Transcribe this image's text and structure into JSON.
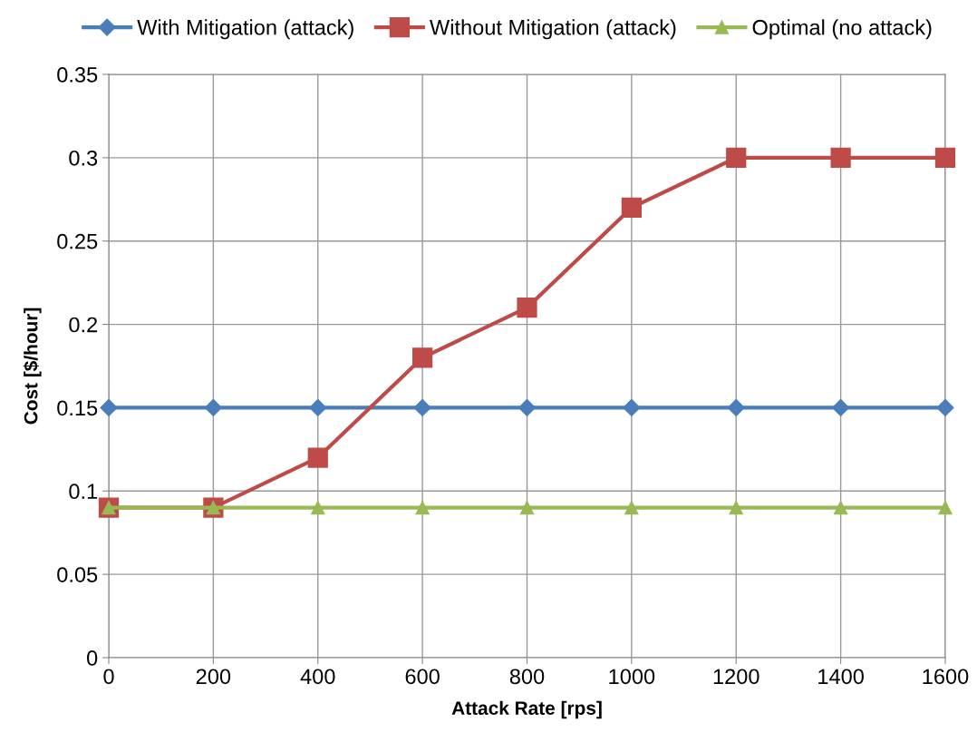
{
  "chart_data": {
    "type": "line",
    "xlabel": "Attack Rate [rps]",
    "ylabel": "Cost [$/hour]",
    "x": [
      0,
      200,
      400,
      600,
      800,
      1000,
      1200,
      1400,
      1600
    ],
    "series": [
      {
        "name": "With Mitigation (attack)",
        "color": "#4a7ebb",
        "marker": "diamond",
        "values": [
          0.15,
          0.15,
          0.15,
          0.15,
          0.15,
          0.15,
          0.15,
          0.15,
          0.15
        ]
      },
      {
        "name": "Without Mitigation (attack)",
        "color": "#be4b48",
        "marker": "square",
        "values": [
          0.09,
          0.09,
          0.12,
          0.18,
          0.21,
          0.27,
          0.3,
          0.3,
          0.3
        ]
      },
      {
        "name": "Optimal (no attack)",
        "color": "#98b954",
        "marker": "triangle",
        "values": [
          0.09,
          0.09,
          0.09,
          0.09,
          0.09,
          0.09,
          0.09,
          0.09,
          0.09
        ]
      }
    ],
    "xlim": [
      0,
      1600
    ],
    "xticks": [
      0,
      200,
      400,
      600,
      800,
      1000,
      1200,
      1400,
      1600
    ],
    "ylim": [
      0,
      0.35
    ],
    "yticks": [
      0,
      0.05,
      0.1,
      0.15,
      0.2,
      0.25,
      0.3,
      0.35
    ],
    "grid": true,
    "legend": "top",
    "line_style": "solid"
  }
}
